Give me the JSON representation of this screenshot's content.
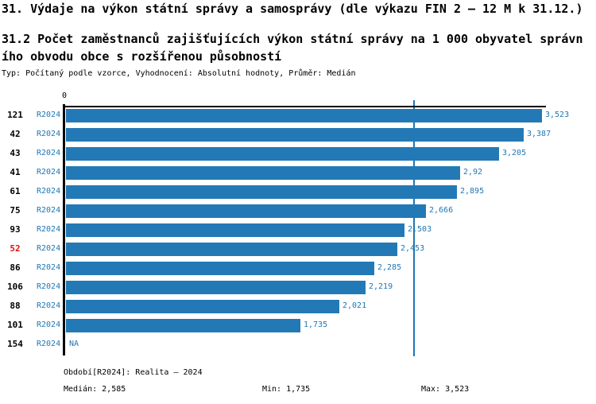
{
  "title": "31. Výdaje na výkon státní správy a samosprávy (dle výkazu FIN 2 — 12 M k 31.12.)",
  "subtitle_line1": "31.2 Počet zaměstnanců zajišťujících výkon státní správy na 1 000 obyvatel správn",
  "subtitle_line2": "ího obvodu obce s rozšířenou působností",
  "meta": "Typ: Počítaný podle vzorce, Vyhodnocení: Absolutní hodnoty, Průměr: Medián",
  "chart_data": {
    "type": "bar",
    "orientation": "horizontal",
    "axis_zero_label": "0",
    "period_label": "R2024",
    "categories": [
      "121",
      "42",
      "43",
      "41",
      "61",
      "75",
      "93",
      "52",
      "86",
      "106",
      "88",
      "101",
      "154"
    ],
    "series": [
      {
        "name": "R2024",
        "values": [
          3.523,
          3.387,
          3.205,
          2.92,
          2.895,
          2.666,
          2.503,
          2.453,
          2.285,
          2.219,
          2.021,
          1.735,
          null
        ]
      }
    ],
    "value_labels": [
      "3,523",
      "3,387",
      "3,205",
      "2,92",
      "2,895",
      "2,666",
      "2,503",
      "2,453",
      "2,285",
      "2,219",
      "2,021",
      "1,735",
      "NA"
    ],
    "highlighted_category": "52",
    "median_value": 2.585,
    "xlim": [
      0,
      3.55
    ],
    "grid": false,
    "legend": "none",
    "colors": {
      "bar": "#2379b5",
      "accent_text": "#1f77b4",
      "highlight_text": "#dd1111",
      "axis": "#000000"
    }
  },
  "footer": {
    "period_info": "Období[R2024]: Realita – 2024",
    "median": "Medián: 2,585",
    "min": "Min: 1,735",
    "max": "Max: 3,523"
  }
}
